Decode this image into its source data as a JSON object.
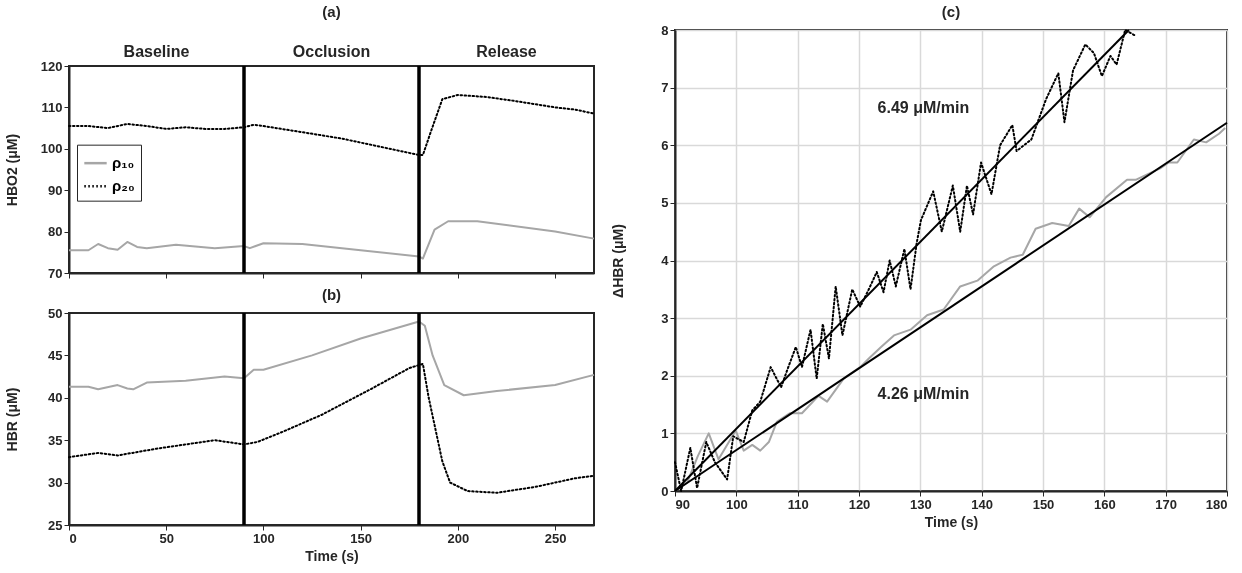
{
  "chart_data": [
    {
      "type": "line",
      "title": "(a)",
      "ylabel": "HBO2 (μM)",
      "xlim": [
        0,
        270
      ],
      "xticks": [
        0,
        50,
        100,
        150,
        200,
        250
      ],
      "ylim": [
        70,
        120
      ],
      "yticks": [
        70,
        80,
        90,
        100,
        110,
        120
      ],
      "tick_labels": "y",
      "legend": "left",
      "marker": "none",
      "annotations": [
        "Baseline",
        "Occlusion",
        "Release"
      ],
      "ref_lines": [
        {
          "axis": "x",
          "value": 90,
          "color": "#000000"
        },
        {
          "axis": "x",
          "value": 180,
          "color": "#000000"
        }
      ],
      "series": [
        {
          "name": "ρ₁₀",
          "color": "#a6a6a6",
          "line_style": "solid",
          "x": [
            0,
            10,
            15,
            20,
            25,
            30,
            35,
            40,
            55,
            75,
            90,
            93,
            100,
            120,
            150,
            180,
            182,
            188,
            195,
            210,
            250,
            270
          ],
          "values": [
            75.5,
            75.5,
            77,
            76,
            75.6,
            77.5,
            76.3,
            76,
            76.8,
            76,
            76.5,
            76,
            77.2,
            77,
            75.5,
            74,
            73.5,
            80.5,
            82.5,
            82.5,
            80,
            78.3
          ]
        },
        {
          "name": "ρ₂₀",
          "color": "#000000",
          "line_style": "dotted",
          "x": [
            0,
            10,
            20,
            30,
            40,
            50,
            60,
            70,
            80,
            90,
            95,
            100,
            120,
            140,
            160,
            180,
            182,
            186,
            192,
            200,
            215,
            230,
            250,
            260,
            270
          ],
          "values": [
            105.5,
            105.5,
            105,
            106,
            105.5,
            104.8,
            105.2,
            104.8,
            104.8,
            105.2,
            105.8,
            105.5,
            104,
            102.5,
            100.5,
            98.5,
            98.5,
            104,
            112,
            113,
            112.5,
            111.5,
            110,
            109.5,
            108.5
          ]
        }
      ]
    },
    {
      "type": "line",
      "title": "(b)",
      "xlabel": "Time (s)",
      "ylabel": "HBR (μM)",
      "xlim": [
        0,
        270
      ],
      "xticks": [
        0,
        50,
        100,
        150,
        200,
        250
      ],
      "ylim": [
        25,
        50
      ],
      "yticks": [
        25,
        30,
        35,
        40,
        45,
        50
      ],
      "legend": false,
      "marker": "none",
      "ref_lines": [
        {
          "axis": "x",
          "value": 90,
          "color": "#000000"
        },
        {
          "axis": "x",
          "value": 180,
          "color": "#000000"
        }
      ],
      "series": [
        {
          "color": "#a6a6a6",
          "line_style": "solid",
          "x": [
            0,
            10,
            15,
            25,
            30,
            33,
            40,
            60,
            80,
            90,
            95,
            100,
            125,
            150,
            180,
            183,
            187,
            193,
            203,
            220,
            250,
            270
          ],
          "values": [
            41.3,
            41.3,
            41,
            41.5,
            41.1,
            41,
            41.8,
            42,
            42.5,
            42.3,
            43.3,
            43.3,
            45,
            47,
            49,
            48.5,
            45,
            41.5,
            40.3,
            40.8,
            41.5,
            42.7
          ]
        },
        {
          "color": "#000000",
          "line_style": "dotted",
          "x": [
            0,
            15,
            25,
            45,
            60,
            75,
            90,
            97,
            110,
            130,
            155,
            175,
            182,
            185,
            192,
            196,
            205,
            220,
            240,
            260,
            270
          ],
          "values": [
            33,
            33.5,
            33.2,
            34,
            34.5,
            35,
            34.5,
            34.8,
            36,
            38,
            41,
            43.5,
            44,
            40,
            32.5,
            30,
            29,
            28.8,
            29.5,
            30.5,
            30.8
          ]
        }
      ]
    },
    {
      "type": "line",
      "title": "(c)",
      "xlabel": "Time (s)",
      "ylabel": "ΔHBR (μM)",
      "xlim": [
        90,
        180
      ],
      "xticks": [
        90,
        100,
        110,
        120,
        130,
        140,
        150,
        160,
        170,
        180
      ],
      "ylim": [
        0,
        8
      ],
      "yticks": [
        0,
        1,
        2,
        3,
        4,
        5,
        6,
        7,
        8
      ],
      "grid": true,
      "legend": false,
      "marker": "none",
      "annotations": [
        "6.49 μM/min",
        "4.26 μM/min"
      ],
      "series": [
        {
          "color": "#a6a6a6",
          "line_style": "solid",
          "x": [
            90,
            92,
            93.7,
            95.5,
            97.1,
            99.9,
            101.2,
            102.6,
            103.9,
            105.3,
            106.6,
            108.7,
            110.7,
            113.4,
            114.8,
            117.5,
            120.2,
            121.6,
            123.6,
            125.7,
            128.4,
            131.1,
            133.8,
            136.5,
            139.3,
            142,
            144.7,
            146.7,
            148.8,
            151.5,
            154.2,
            155.9,
            157.6,
            160.3,
            163.7,
            165.1,
            169.1,
            170.5,
            171.9,
            174.6,
            176.6,
            178.7,
            179.7
          ],
          "values": [
            0,
            0.15,
            0.6,
            1,
            0.55,
            1.05,
            0.7,
            0.8,
            0.7,
            0.85,
            1.2,
            1.35,
            1.35,
            1.65,
            1.55,
            1.95,
            2.15,
            2.3,
            2.5,
            2.7,
            2.8,
            3.05,
            3.15,
            3.55,
            3.65,
            3.9,
            4.05,
            4.1,
            4.55,
            4.65,
            4.6,
            4.9,
            4.75,
            5.1,
            5.4,
            5.4,
            5.6,
            5.7,
            5.7,
            6.1,
            6.05,
            6.2,
            6.3
          ]
        },
        {
          "color": "#000000",
          "line_style": "dotted",
          "x": [
            90,
            91,
            92.5,
            93.6,
            95.1,
            96.5,
            98.5,
            99.5,
            101.2,
            102.6,
            103.9,
            105.6,
            107.3,
            108.3,
            109.7,
            110.7,
            112.1,
            113.1,
            114.1,
            115.1,
            116.2,
            117.3,
            118.9,
            120.2,
            121.6,
            122.9,
            124,
            125,
            126,
            127.4,
            128.4,
            129.4,
            130.1,
            132.1,
            133.5,
            135.3,
            136.5,
            137.6,
            138.6,
            139.9,
            141.6,
            143,
            145,
            145.7,
            148.1,
            150.5,
            152.5,
            153.5,
            154.9,
            156.9,
            158.3,
            159.6,
            161,
            162,
            163.4,
            165.1
          ],
          "values": [
            0.5,
            0,
            0.75,
            0.05,
            0.85,
            0.5,
            0.2,
            0.95,
            0.85,
            1.4,
            1.55,
            2.15,
            1.8,
            2.1,
            2.5,
            2.15,
            2.8,
            1.95,
            2.9,
            2.3,
            3.55,
            2.7,
            3.5,
            3.2,
            3.5,
            3.8,
            3.45,
            4,
            3.55,
            4.2,
            3.5,
            4.3,
            4.7,
            5.2,
            4.5,
            5.3,
            4.5,
            5.3,
            4.8,
            5.7,
            5.15,
            6,
            6.35,
            5.9,
            6.1,
            6.8,
            7.25,
            6.4,
            7.3,
            7.75,
            7.6,
            7.2,
            7.55,
            7.4,
            8,
            7.9
          ]
        },
        {
          "color": "#000000",
          "line_style": "solid",
          "x": [
            90,
            164
          ],
          "values": [
            0,
            8
          ]
        },
        {
          "color": "#000000",
          "line_style": "solid",
          "x": [
            90,
            180
          ],
          "values": [
            0,
            6.39
          ]
        }
      ]
    }
  ]
}
